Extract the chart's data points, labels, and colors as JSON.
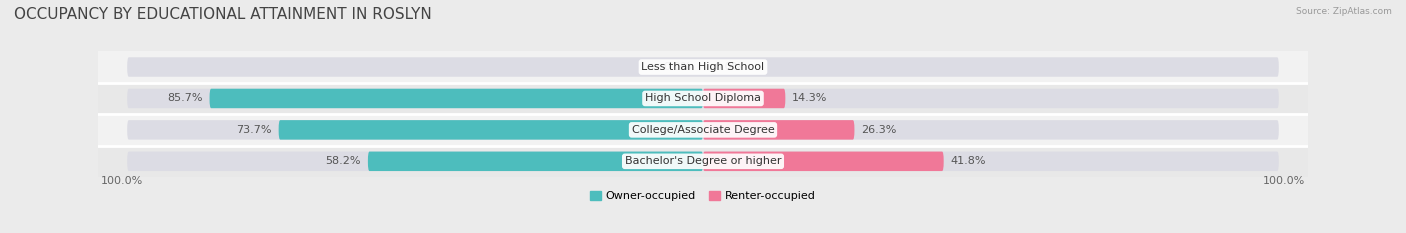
{
  "title": "OCCUPANCY BY EDUCATIONAL ATTAINMENT IN ROSLYN",
  "source": "Source: ZipAtlas.com",
  "categories": [
    "Less than High School",
    "High School Diploma",
    "College/Associate Degree",
    "Bachelor's Degree or higher"
  ],
  "owner_values": [
    0.0,
    85.7,
    73.7,
    58.2
  ],
  "renter_values": [
    0.0,
    14.3,
    26.3,
    41.8
  ],
  "owner_color": "#4DBDBD",
  "renter_color": "#F07898",
  "owner_label": "Owner-occupied",
  "renter_label": "Renter-occupied",
  "bg_color": "#EBEBEB",
  "bar_bg_color": "#DCDCE4",
  "row_bg_even": "#E8E8E8",
  "row_bg_odd": "#F2F2F2",
  "axis_label_left": "100.0%",
  "axis_label_right": "100.0%",
  "title_fontsize": 11,
  "label_fontsize": 8,
  "cat_fontsize": 8,
  "bar_height": 0.62,
  "xlim": 105
}
